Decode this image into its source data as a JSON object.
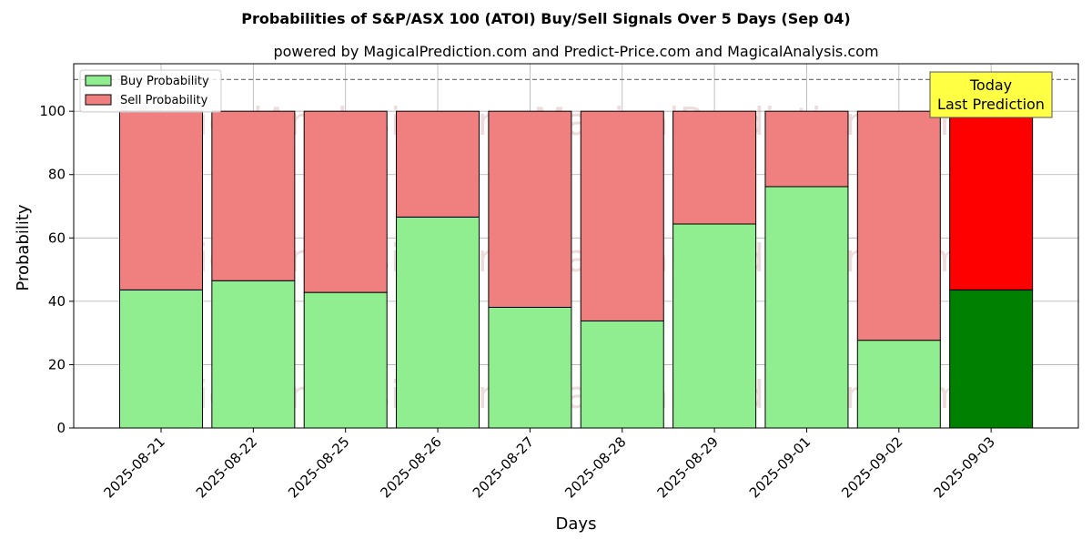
{
  "chart_data": {
    "type": "bar",
    "stacked": true,
    "title": "Probabilities of S&P/ASX 100 (ATOI) Buy/Sell Signals Over 5 Days (Sep 04)",
    "subtitle": "powered by MagicalPrediction.com and Predict-Price.com and MagicalAnalysis.com",
    "xlabel": "Days",
    "ylabel": "Probability",
    "ylim": [
      0,
      115
    ],
    "yticks": [
      0,
      20,
      40,
      60,
      80,
      100
    ],
    "grid": true,
    "legend_position": "top-left",
    "reference_line": 110,
    "categories": [
      "2025-08-21",
      "2025-08-22",
      "2025-08-25",
      "2025-08-26",
      "2025-08-27",
      "2025-08-28",
      "2025-08-29",
      "2025-09-01",
      "2025-09-02",
      "2025-09-03"
    ],
    "series": [
      {
        "name": "Buy Probability",
        "values": [
          43.6,
          46.5,
          42.8,
          66.6,
          38.1,
          33.8,
          64.4,
          76.2,
          27.7,
          43.6
        ],
        "color": "#90ee90",
        "highlight_color": "#008000"
      },
      {
        "name": "Sell Probability",
        "values": [
          56.4,
          53.5,
          57.2,
          33.4,
          61.9,
          66.2,
          35.6,
          23.8,
          72.3,
          56.4
        ],
        "color": "#f08080",
        "highlight_color": "#ff0000"
      }
    ],
    "highlight_index": 9,
    "annotation": {
      "line1": "Today",
      "line2": "Last Prediction",
      "background": "#ffff44"
    },
    "watermarks": [
      "MagicalAnalysis.com",
      "MagicalPrediction.com"
    ]
  }
}
